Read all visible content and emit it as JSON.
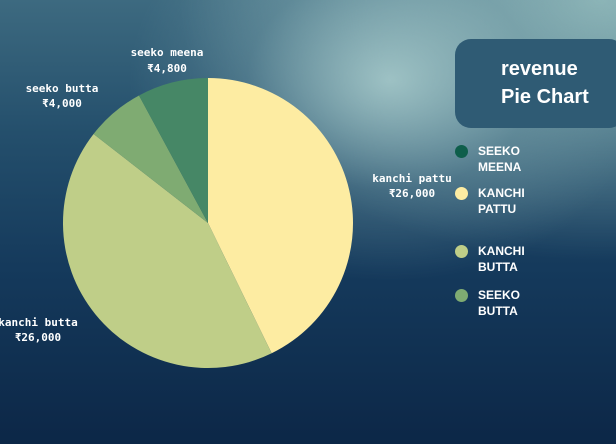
{
  "title": {
    "line1": "revenue",
    "line2": "Pie Chart"
  },
  "colors": {
    "seeko_meena": "#468766",
    "kanchi_pattu": "#fdeca2",
    "kanchi_butta": "#bfce88",
    "seeko_butta": "#7fab72",
    "legend_seeko_meena": "#0e5e4b"
  },
  "chart_data": {
    "type": "pie",
    "title": "revenue Pie Chart",
    "slices": [
      {
        "key": "kanchi_pattu",
        "label": "kanchi pattu",
        "value": 26000,
        "value_label": "₹26,000",
        "color": "#fdeca2"
      },
      {
        "key": "kanchi_butta",
        "label": "kanchi butta",
        "value": 26000,
        "value_label": "₹26,000",
        "color": "#bfce88"
      },
      {
        "key": "seeko_butta",
        "label": "seeko butta",
        "value": 4000,
        "value_label": "₹4,000",
        "color": "#7fab72"
      },
      {
        "key": "seeko_meena",
        "label": "seeko meena",
        "value": 4800,
        "value_label": "₹4,800",
        "color": "#468766"
      }
    ],
    "legend": [
      {
        "label": "SEEKO MEENA",
        "color": "#0e5e4b"
      },
      {
        "label": "KANCHI PATTU",
        "color": "#fdeca2"
      },
      {
        "label": "KANCHI BUTTA",
        "color": "#bfce88"
      },
      {
        "label": "SEEKO BUTTA",
        "color": "#7fab72"
      }
    ],
    "legend_position": "right"
  }
}
